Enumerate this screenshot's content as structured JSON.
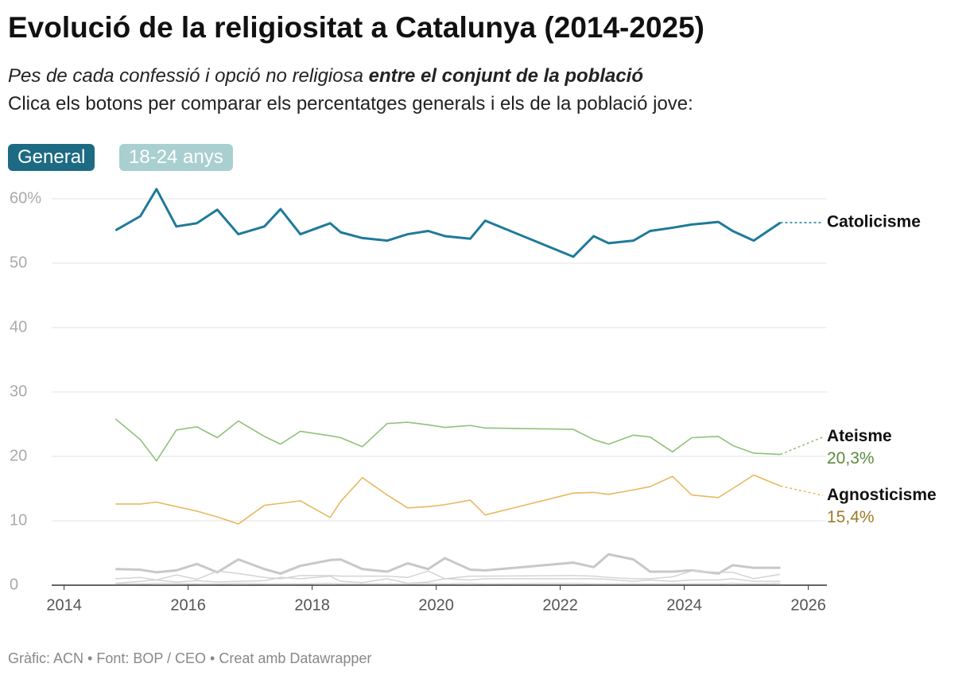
{
  "chart_data": {
    "type": "line",
    "title": "Evolució de la religiositat a Catalunya (2014-2025)",
    "subtitle": "Pes de cada confessió i opció no religiosa",
    "subtitle_emphasis": "entre el conjunt de la població",
    "description": "Clica els botons per comparar els percentatges generals i els de la població jove:",
    "buttons": [
      "General",
      "18-24 anys"
    ],
    "source": "Gràfic: ACN • Font: BOP / CEO • Creat amb Datawrapper",
    "x": [
      2014.83,
      2015.23,
      2015.49,
      2015.81,
      2016.14,
      2016.47,
      2016.81,
      2017.23,
      2017.49,
      2017.81,
      2018.29,
      2018.46,
      2018.81,
      2019.21,
      2019.54,
      2019.87,
      2020.14,
      2020.55,
      2020.79,
      2022.21,
      2022.54,
      2022.78,
      2023.18,
      2023.45,
      2023.81,
      2024.12,
      2024.55,
      2024.78,
      2025.12,
      2025.55
    ],
    "series": [
      {
        "color": "#c8c8c8",
        "values": [
          2.5,
          2.4,
          2.0,
          2.3,
          3.3,
          2.0,
          4.0,
          2.5,
          1.8,
          3.0,
          3.9,
          4.0,
          2.5,
          2.1,
          3.4,
          2.5,
          4.2,
          2.4,
          2.3,
          3.5,
          2.8,
          4.8,
          4.0,
          2.1,
          2.1,
          2.3,
          1.8,
          3.1,
          2.7,
          2.7
        ]
      },
      {
        "color": "#d4d4d4",
        "values": [
          1.0,
          1.2,
          0.8,
          1.6,
          0.9,
          2.2,
          1.8,
          1.2,
          1.0,
          1.5,
          1.5,
          1.4,
          1.4,
          1.4,
          1.2,
          2.2,
          1.0,
          1.4,
          1.4,
          1.5,
          1.4,
          1.2,
          1.0,
          1.0,
          1.3,
          2.2,
          2.0,
          2.0,
          1.0,
          1.7
        ]
      },
      {
        "color": "#d4d4d4",
        "values": [
          0.3,
          0.6,
          0.8,
          0.5,
          0.7,
          0.5,
          0.6,
          0.7,
          1.2,
          1.0,
          1.4,
          0.6,
          0.4,
          1.0,
          0.3,
          0.5,
          1.0,
          0.8,
          1.0,
          1.0,
          1.0,
          0.9,
          0.6,
          0.8,
          0.6,
          0.8,
          0.8,
          1.0,
          0.6,
          0.6
        ]
      },
      {
        "color": "#d4d4d4",
        "values": [
          0.2,
          0.2,
          0.3,
          0.3,
          0.2,
          0.2,
          0.3,
          0.2,
          0.2,
          0.2,
          0.3,
          0.2,
          0.2,
          0.2,
          0.2,
          0.3,
          0.2,
          0.3,
          0.2,
          0.3,
          0.2,
          0.2,
          0.2,
          0.2,
          0.2,
          0.2,
          0.2,
          0.3,
          0.2,
          0.3
        ]
      },
      {
        "name": "Agnosticisme",
        "color": "#e8b860",
        "label_color": "#a07a2a",
        "values": [
          12.6,
          12.6,
          12.9,
          12.2,
          11.5,
          10.6,
          9.5,
          12.4,
          12.7,
          13.1,
          10.5,
          13.0,
          16.7,
          14.0,
          12.0,
          12.2,
          12.5,
          13.2,
          10.9,
          14.3,
          14.4,
          14.1,
          14.8,
          15.3,
          16.9,
          14.0,
          13.6,
          15.0,
          17.1,
          15.4
        ],
        "value_labels": [
          null,
          null,
          null,
          null,
          null,
          null,
          null,
          null,
          null,
          null,
          null,
          null,
          null,
          null,
          null,
          null,
          null,
          null,
          null,
          null,
          null,
          null,
          null,
          null,
          null,
          null,
          null,
          null,
          null,
          "15,4%"
        ]
      },
      {
        "name": "Ateisme",
        "color": "#8fc17a",
        "label_color": "#5a8a3c",
        "values": [
          25.8,
          22.6,
          19.3,
          24.1,
          24.6,
          22.9,
          25.5,
          23.1,
          21.9,
          23.9,
          23.2,
          22.9,
          21.5,
          25.1,
          25.3,
          24.9,
          24.5,
          24.8,
          24.4,
          24.2,
          22.6,
          21.9,
          23.3,
          23.0,
          20.7,
          22.9,
          23.1,
          21.7,
          20.5,
          20.3
        ],
        "value_labels": [
          null,
          null,
          null,
          null,
          null,
          null,
          null,
          null,
          null,
          null,
          null,
          null,
          null,
          null,
          null,
          null,
          null,
          null,
          null,
          null,
          null,
          null,
          null,
          null,
          null,
          null,
          null,
          null,
          null,
          "20,3%"
        ]
      },
      {
        "name": "Catolicisme",
        "color": "#1f7a9a",
        "values": [
          55.1,
          57.3,
          61.5,
          55.7,
          56.2,
          58.3,
          54.5,
          55.7,
          58.4,
          54.5,
          56.2,
          54.8,
          53.9,
          53.5,
          54.5,
          55.0,
          54.2,
          53.8,
          56.6,
          51.0,
          54.2,
          53.1,
          53.5,
          55.0,
          55.5,
          56.0,
          56.4,
          55.0,
          53.5,
          56.3
        ]
      }
    ],
    "xlim": [
      2013.8,
      2026.3
    ],
    "xticks": [
      2014,
      2016,
      2018,
      2020,
      2022,
      2024,
      2026
    ],
    "ylim": [
      0,
      60
    ],
    "yticks": [
      0,
      10,
      20,
      30,
      40,
      50,
      {
        "value": 60,
        "label": "60%"
      }
    ],
    "grid": true
  }
}
